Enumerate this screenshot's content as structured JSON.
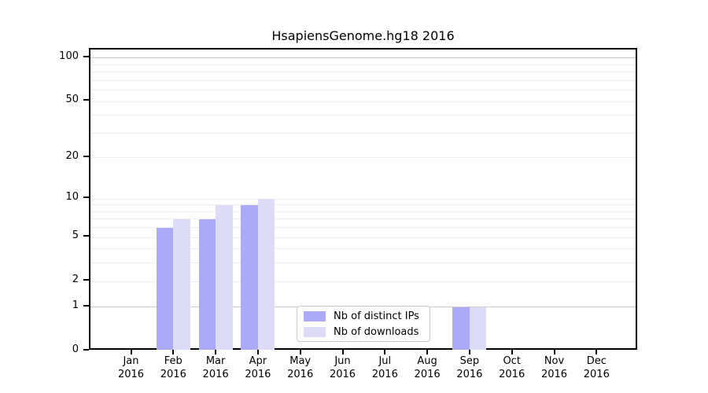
{
  "chart_data": {
    "type": "bar",
    "title": "HsapiensGenome.hg18 2016",
    "categories": [
      "Jan",
      "Feb",
      "Mar",
      "Apr",
      "May",
      "Jun",
      "Jul",
      "Aug",
      "Sep",
      "Oct",
      "Nov",
      "Dec"
    ],
    "category_year": "2016",
    "series": [
      {
        "name": "Nb of distinct IPs",
        "color": "#aaaaf8",
        "values": [
          0,
          6,
          7,
          9,
          0,
          0,
          0,
          0,
          1,
          0,
          0,
          0
        ]
      },
      {
        "name": "Nb of downloads",
        "color": "#dcdcf8",
        "values": [
          0,
          7,
          9,
          10,
          0,
          0,
          0,
          0,
          1,
          0,
          0,
          0
        ]
      }
    ],
    "xlabel": "",
    "ylabel": "",
    "y_scale": "log1p",
    "y_ticks": [
      0,
      1,
      2,
      5,
      10,
      20,
      50,
      100
    ],
    "y_gridlines": [
      1,
      2,
      3,
      4,
      5,
      6,
      7,
      8,
      9,
      10,
      20,
      30,
      40,
      50,
      60,
      70,
      80,
      90,
      100
    ],
    "y_major_gridlines": [
      1,
      100
    ],
    "ylim": [
      0,
      115
    ],
    "grid": "horizontal-only",
    "legend_position": "inside-bottom-center",
    "colors": {
      "axis": "#000000",
      "grid_minor": "#efefef",
      "grid_major": "#cccccc",
      "background": "#ffffff",
      "legend_border": "#c9c9c9"
    }
  }
}
